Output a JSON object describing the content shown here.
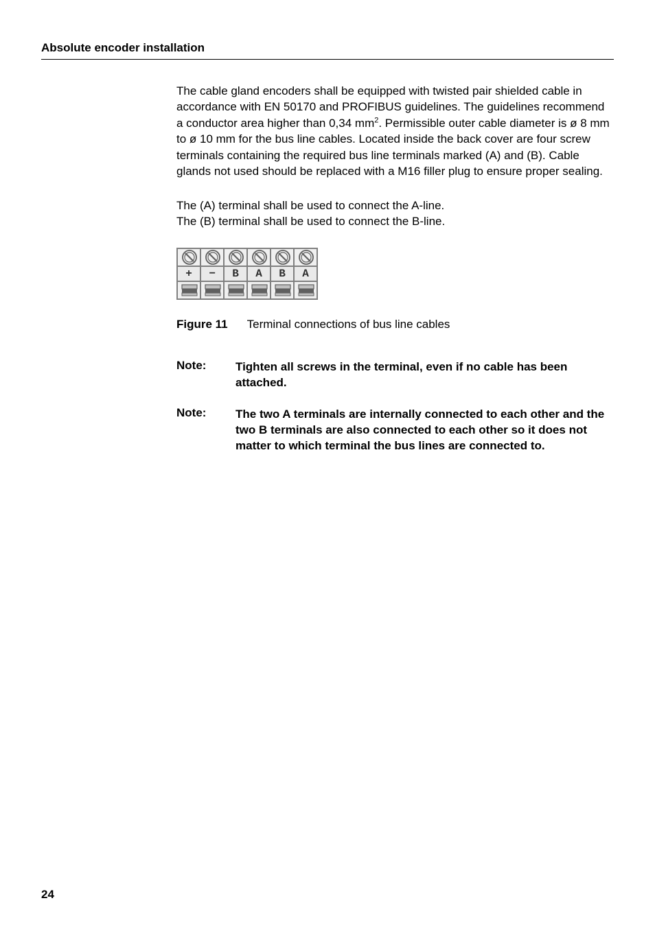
{
  "header": "Absolute encoder installation",
  "paragraph1_a": "The cable gland encoders shall be equipped with twisted pair shielded cable in accordance with EN 50170 and PROFIBUS guidelines. The guidelines recommend a conductor area higher than 0,34 mm",
  "paragraph1_sup": "2",
  "paragraph1_b": ". Permissible outer cable diameter is ø 8 mm to ø 10 mm for the bus line cables. Located inside the back cover are four screw terminals containing the required bus line terminals marked (A) and (B). Cable glands not used should be replaced with a M16 filler plug to ensure proper sealing.",
  "paragraph2_line1": "The (A) terminal shall be used to connect the A-line.",
  "paragraph2_line2": "The (B) terminal shall be used to connect the B-line.",
  "terminal_labels": [
    "+",
    "−",
    "B",
    "A",
    "B",
    "A"
  ],
  "figure_label": "Figure 11",
  "figure_caption": "Terminal connections of bus line cables",
  "note_label": "Note:",
  "note1": "Tighten all screws in the terminal, even if no cable has been attached.",
  "note2": "The two A terminals are internally connected to each other and the two B terminals are also connected to each other so it does not matter to which terminal the bus lines are connected to.",
  "page_number": "24",
  "colors": {
    "text": "#000000",
    "background": "#ffffff",
    "terminal_bg": "#f0f0f0",
    "terminal_border": "#808080",
    "screw_dark": "#606060",
    "screw_light": "#c0c0c0"
  }
}
